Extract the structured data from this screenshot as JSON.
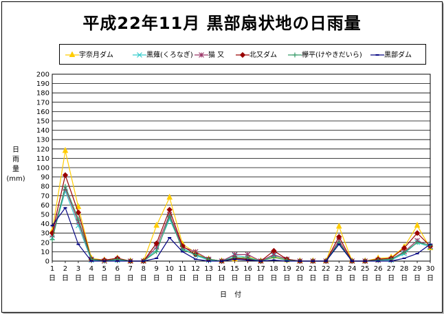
{
  "chart_data": {
    "type": "line",
    "title": "平成22年11月  黒部扇状地の日雨量",
    "ylabel": [
      "日",
      "雨",
      "量",
      "(mm)"
    ],
    "xlabel": "日 付",
    "ylim": [
      0,
      200
    ],
    "ytick_step": 10,
    "grid": true,
    "legend_position": "top",
    "x": [
      1,
      2,
      3,
      4,
      5,
      6,
      7,
      8,
      9,
      10,
      11,
      12,
      13,
      14,
      15,
      16,
      17,
      18,
      19,
      20,
      21,
      22,
      23,
      24,
      25,
      26,
      27,
      28,
      29,
      30
    ],
    "x_suffix": "日",
    "series": [
      {
        "name": "宇奈月ダム",
        "color": "#ffcc00",
        "marker": "triangle",
        "values": [
          32,
          118,
          58,
          3,
          1,
          3,
          0,
          0,
          38,
          68,
          18,
          9,
          2,
          0,
          2,
          5,
          0,
          5,
          1,
          0,
          0,
          0,
          37,
          0,
          0,
          3,
          4,
          15,
          38,
          14
        ]
      },
      {
        "name": "黒薙(くろなぎ)",
        "color": "#33cccc",
        "marker": "x",
        "values": [
          25,
          75,
          38,
          1,
          0,
          1,
          0,
          0,
          12,
          45,
          14,
          6,
          1,
          0,
          6,
          4,
          0,
          6,
          2,
          0,
          0,
          0,
          18,
          0,
          0,
          1,
          1,
          8,
          20,
          15
        ]
      },
      {
        "name": "猫  又",
        "color": "#993366",
        "marker": "asterisk",
        "values": [
          28,
          78,
          42,
          2,
          0,
          2,
          0,
          0,
          15,
          50,
          15,
          10,
          2,
          0,
          7,
          7,
          0,
          7,
          2,
          0,
          0,
          0,
          22,
          0,
          0,
          1,
          2,
          10,
          22,
          16
        ]
      },
      {
        "name": "北又ダム",
        "color": "#990000",
        "marker": "diamond",
        "values": [
          30,
          92,
          52,
          2,
          1,
          3,
          0,
          0,
          19,
          55,
          16,
          7,
          2,
          0,
          3,
          2,
          0,
          11,
          2,
          0,
          0,
          0,
          26,
          0,
          0,
          2,
          3,
          14,
          30,
          16
        ]
      },
      {
        "name": "欅平(けやきだいら)",
        "color": "#339966",
        "marker": "plus",
        "values": [
          23,
          80,
          45,
          2,
          0,
          2,
          0,
          0,
          10,
          48,
          12,
          7,
          2,
          0,
          4,
          3,
          0,
          4,
          1,
          0,
          0,
          0,
          20,
          0,
          0,
          1,
          2,
          9,
          20,
          17
        ]
      },
      {
        "name": "黒部ダム",
        "color": "#000080",
        "marker": "dash",
        "values": [
          38,
          57,
          18,
          0,
          0,
          0,
          0,
          0,
          3,
          25,
          10,
          2,
          0,
          0,
          2,
          1,
          0,
          1,
          0,
          0,
          0,
          0,
          18,
          0,
          0,
          0,
          0,
          3,
          8,
          18
        ]
      }
    ]
  }
}
